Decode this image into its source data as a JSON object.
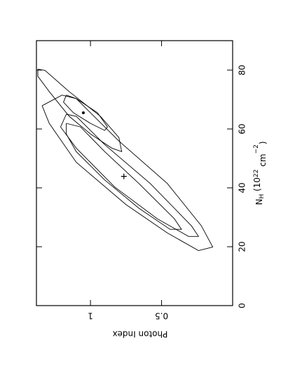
{
  "chart_data": {
    "type": "contour",
    "x_label": [
      "N",
      "H",
      " (10",
      "22",
      " cm",
      "−2",
      ")"
    ],
    "y_label": "Photon Index",
    "xlim": [
      0,
      90
    ],
    "xticks": [
      0,
      20,
      40,
      60,
      80
    ],
    "ylim": [
      0,
      1.38
    ],
    "yticks": [
      {
        "value": 0.5,
        "label": "0.5"
      },
      1
    ],
    "color": "#000000",
    "series": [
      {
        "x": [
          67.9,
          71.5,
          70.3,
          55.9,
          41.5,
          27.1,
          19.9,
          18.7,
          24.7,
          34.3,
          48.7,
          61.9,
          67.9
        ],
        "y": [
          1.34,
          1.2,
          1.1,
          0.8,
          0.46,
          0.22,
          0.14,
          0.24,
          0.46,
          0.75,
          1.1,
          1.29,
          1.34
        ]
      },
      {
        "x": [
          65.0,
          64.3,
          54.7,
          41.5,
          27.1,
          23.5,
          23.5,
          29.5,
          40.3,
          53.5,
          60.7,
          65.0
        ],
        "y": [
          1.17,
          1.1,
          0.9,
          0.58,
          0.29,
          0.24,
          0.31,
          0.53,
          0.83,
          1.1,
          1.21,
          1.17
        ]
      },
      {
        "x": [
          61.9,
          60.7,
          52.3,
          41.5,
          29.5,
          25.9,
          25.9,
          33.1,
          42.7,
          52.3,
          58.3,
          61.9
        ],
        "y": [
          1.17,
          1.07,
          0.9,
          0.66,
          0.41,
          0.36,
          0.44,
          0.66,
          0.9,
          1.1,
          1.17,
          1.17
        ]
      },
      {
        "x": [
          80.3,
          79.9,
          72.7,
          64.3,
          57.1,
          52.3,
          53.5,
          58.3,
          64.3,
          72.7,
          77.9,
          80.3
        ],
        "y": [
          1.37,
          1.32,
          1.15,
          0.93,
          0.8,
          0.78,
          0.85,
          1.0,
          1.15,
          1.29,
          1.37,
          1.37
        ]
      },
      {
        "x": [
          71.5,
          70.3,
          65.5,
          60.7,
          59.5,
          61.9,
          65.5,
          69.1,
          71.5
        ],
        "y": [
          1.17,
          1.1,
          0.95,
          0.88,
          0.9,
          1.0,
          1.12,
          1.19,
          1.17
        ]
      }
    ],
    "plus_marker": {
      "x": 43.9,
      "y": 0.765
    },
    "dot_marker": {
      "x": 65.5,
      "y": 1.05
    }
  }
}
